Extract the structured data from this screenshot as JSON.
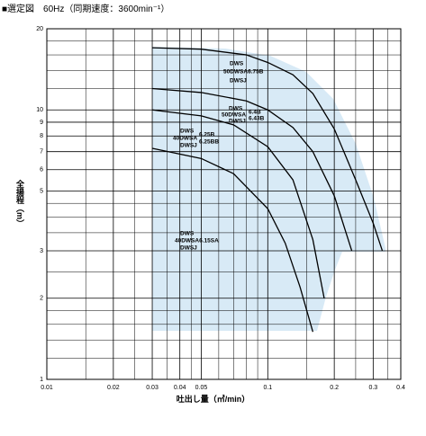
{
  "chart_data": {
    "type": "line",
    "title": "■選定図　60Hz（同期速度：3600min⁻¹）",
    "xlabel": "吐出し量（㎥/min）",
    "ylabel": "全揚程（m）",
    "xscale": "log",
    "yscale": "log",
    "xlim": [
      0.01,
      0.4
    ],
    "ylim": [
      1,
      20
    ],
    "xticks": [
      0.01,
      0.02,
      0.03,
      0.04,
      0.05,
      0.1,
      0.2,
      0.3,
      0.4
    ],
    "yticks": [
      1,
      2,
      3,
      5,
      6,
      7,
      8,
      9,
      10,
      20
    ],
    "xgrid": [
      0.015,
      0.025,
      0.035,
      0.045,
      0.06,
      0.07,
      0.08,
      0.09,
      0.15,
      0.25,
      0.35
    ],
    "ygrid": [
      1.2,
      1.4,
      1.6,
      1.8,
      2.5,
      3.5,
      4,
      4.5,
      12,
      14,
      16,
      18
    ],
    "grid": true,
    "series": [
      {
        "name": [
          "DWS",
          "50DWSA6.75B",
          "DWSJ"
        ],
        "color": "#000000",
        "x": [
          0.03,
          0.05,
          0.08,
          0.1,
          0.13,
          0.16,
          0.2,
          0.25,
          0.3,
          0.33
        ],
        "values": [
          17,
          16.8,
          16,
          15,
          13.5,
          11.5,
          8.5,
          5.5,
          3.8,
          3
        ]
      },
      {
        "name": [
          "DWS",
          "50DWSA",
          "DWSJ",
          "6.4B",
          "6.43B"
        ],
        "color": "#000000",
        "x": [
          0.03,
          0.05,
          0.08,
          0.1,
          0.13,
          0.16,
          0.2,
          0.24
        ],
        "values": [
          12,
          11.6,
          10.8,
          10,
          8.6,
          7,
          4.8,
          3
        ]
      },
      {
        "name": [
          "DWS",
          "40DWSA",
          "DWSJ",
          "6.25B",
          "6.25BB"
        ],
        "color": "#000000",
        "x": [
          0.03,
          0.05,
          0.07,
          0.1,
          0.13,
          0.16,
          0.18
        ],
        "values": [
          10,
          9.5,
          8.8,
          7.3,
          5.5,
          3.3,
          2
        ]
      },
      {
        "name": [
          "DWS",
          "40DWSA6.15SA",
          "DWSJ"
        ],
        "color": "#000000",
        "x": [
          0.03,
          0.05,
          0.07,
          0.1,
          0.12,
          0.14,
          0.16
        ],
        "values": [
          7.2,
          6.6,
          5.8,
          4.3,
          3.2,
          2.2,
          1.5
        ]
      }
    ]
  }
}
